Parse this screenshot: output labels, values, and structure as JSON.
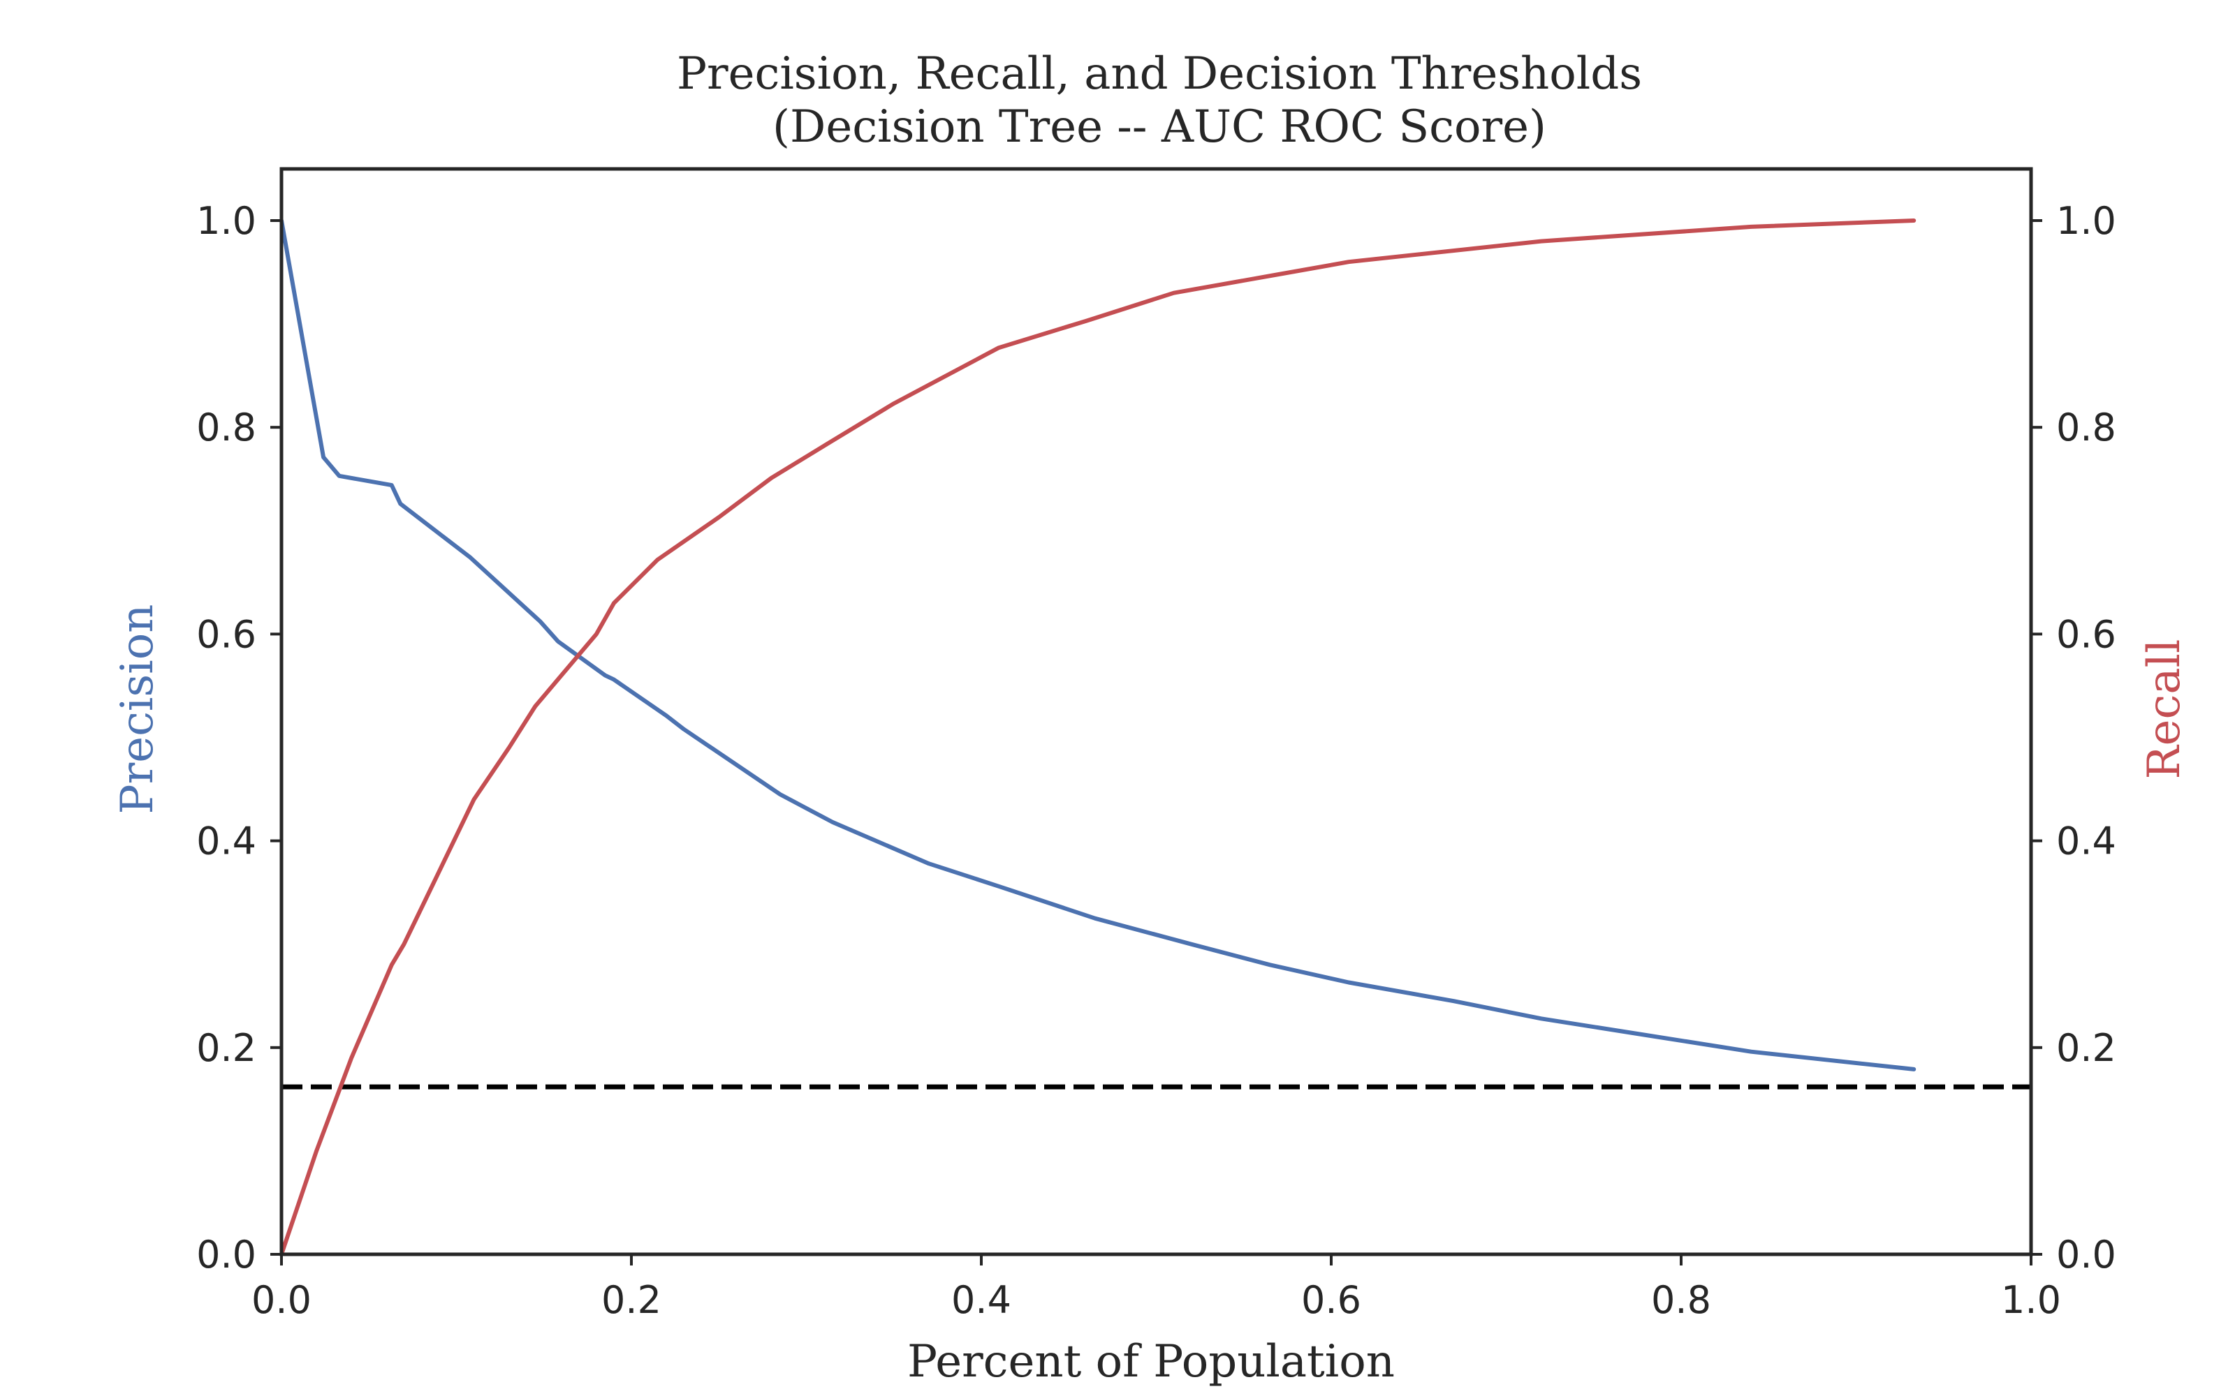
{
  "chart_data": {
    "type": "line",
    "title": "Precision, Recall, and Decision Thresholds",
    "subtitle": "(Decision Tree -- AUC ROC Score)",
    "xlabel": "Percent of Population",
    "ylabel_left": "Precision",
    "ylabel_right": "Recall",
    "xlim": [
      0,
      1
    ],
    "ylim": [
      0,
      1.05
    ],
    "x_ticks": [
      "0.0",
      "0.2",
      "0.4",
      "0.6",
      "0.8",
      "1.0"
    ],
    "y_ticks": [
      "0.0",
      "0.2",
      "0.4",
      "0.6",
      "0.8",
      "1.0"
    ],
    "grid": false,
    "colors": {
      "precision": "#4c72b0",
      "recall": "#c44e52",
      "baseline": "#000000",
      "axes": "#262626"
    },
    "baseline": {
      "y": 0.162,
      "style": "dashed"
    },
    "series": [
      {
        "name": "Precision",
        "axis": "left",
        "points": [
          [
            0.0,
            1.0
          ],
          [
            0.024,
            0.771
          ],
          [
            0.033,
            0.753
          ],
          [
            0.063,
            0.744
          ],
          [
            0.068,
            0.726
          ],
          [
            0.108,
            0.674
          ],
          [
            0.148,
            0.612
          ],
          [
            0.158,
            0.593
          ],
          [
            0.185,
            0.56
          ],
          [
            0.19,
            0.556
          ],
          [
            0.22,
            0.521
          ],
          [
            0.23,
            0.508
          ],
          [
            0.285,
            0.445
          ],
          [
            0.315,
            0.418
          ],
          [
            0.37,
            0.378
          ],
          [
            0.41,
            0.356
          ],
          [
            0.465,
            0.325
          ],
          [
            0.52,
            0.3
          ],
          [
            0.565,
            0.28
          ],
          [
            0.61,
            0.263
          ],
          [
            0.67,
            0.245
          ],
          [
            0.72,
            0.228
          ],
          [
            0.78,
            0.212
          ],
          [
            0.84,
            0.196
          ],
          [
            0.933,
            0.179
          ]
        ]
      },
      {
        "name": "Recall",
        "axis": "right",
        "points": [
          [
            0.0,
            0.0
          ],
          [
            0.02,
            0.1
          ],
          [
            0.04,
            0.19
          ],
          [
            0.063,
            0.28
          ],
          [
            0.07,
            0.3
          ],
          [
            0.09,
            0.37
          ],
          [
            0.11,
            0.44
          ],
          [
            0.13,
            0.49
          ],
          [
            0.145,
            0.53
          ],
          [
            0.16,
            0.56
          ],
          [
            0.18,
            0.6
          ],
          [
            0.19,
            0.63
          ],
          [
            0.215,
            0.672
          ],
          [
            0.25,
            0.713
          ],
          [
            0.28,
            0.751
          ],
          [
            0.31,
            0.782
          ],
          [
            0.35,
            0.823
          ],
          [
            0.37,
            0.841
          ],
          [
            0.41,
            0.877
          ],
          [
            0.46,
            0.903
          ],
          [
            0.51,
            0.93
          ],
          [
            0.57,
            0.948
          ],
          [
            0.61,
            0.96
          ],
          [
            0.72,
            0.98
          ],
          [
            0.84,
            0.994
          ],
          [
            0.933,
            1.0
          ]
        ]
      }
    ]
  }
}
